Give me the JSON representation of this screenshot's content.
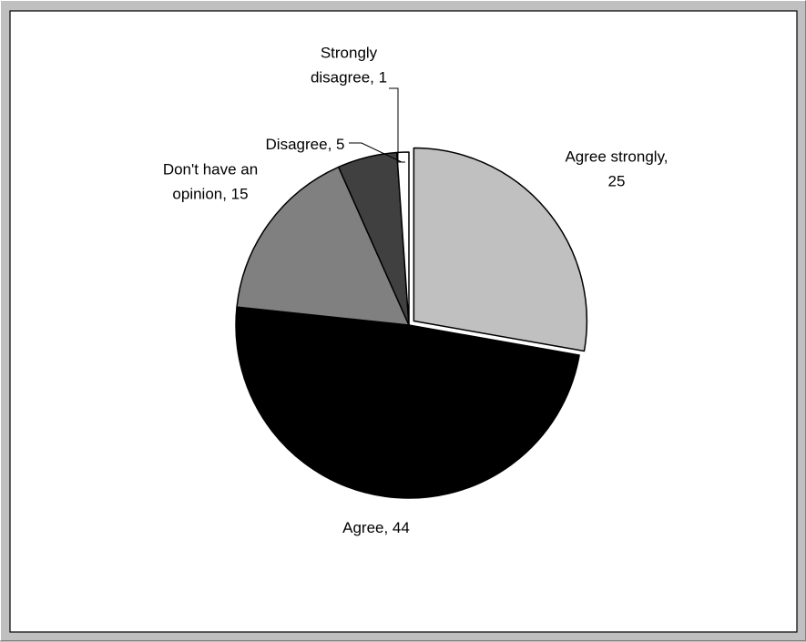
{
  "chart_data": {
    "type": "pie",
    "slices": [
      {
        "label_lines": [
          "Agree strongly,",
          "25"
        ],
        "value": 25,
        "color": "#c0c0c0",
        "exploded": true
      },
      {
        "label_lines": [
          "Agree, 44"
        ],
        "value": 44,
        "color": "#000000",
        "exploded": false
      },
      {
        "label_lines": [
          "Don't have an",
          "opinion, 15"
        ],
        "value": 15,
        "color": "#808080",
        "exploded": false
      },
      {
        "label_lines": [
          "Disagree, 5"
        ],
        "value": 5,
        "color": "#404040",
        "exploded": false
      },
      {
        "label_lines": [
          "Strongly",
          "disagree, 1"
        ],
        "value": 1,
        "color": "#ffffff",
        "exploded": false
      }
    ],
    "legend": "none",
    "grid": false,
    "start_angle_deg": 0,
    "direction": "clockwise"
  }
}
